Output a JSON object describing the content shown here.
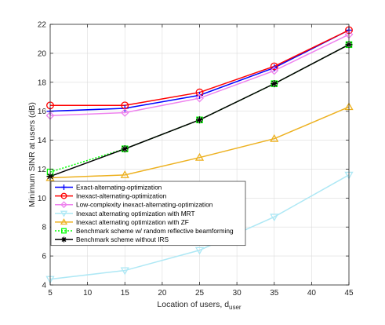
{
  "chart_data": {
    "type": "line",
    "title": "",
    "xlabel": "Location of users, d",
    "xlabel_sub": "user",
    "ylabel": "Minimum SINR at users (dB)",
    "xlim": [
      5,
      45
    ],
    "ylim": [
      4,
      22
    ],
    "xticks": [
      5,
      10,
      15,
      20,
      25,
      30,
      35,
      40,
      45
    ],
    "yticks": [
      4,
      6,
      8,
      10,
      12,
      14,
      16,
      18,
      20,
      22
    ],
    "grid": true,
    "legend_position": "lower-left",
    "x": [
      5,
      15,
      25,
      35,
      45
    ],
    "series": [
      {
        "name": "Exact-alternating-optimization",
        "color": "#0000ff",
        "marker": "plus",
        "dash": "solid",
        "values": [
          16.0,
          16.2,
          17.1,
          19.0,
          21.6
        ]
      },
      {
        "name": "Inexact-alternating-optimization",
        "color": "#ff0000",
        "marker": "circle",
        "dash": "solid",
        "values": [
          16.4,
          16.4,
          17.3,
          19.1,
          21.6
        ]
      },
      {
        "name": "Low-complexity inexact-alternating-optimization",
        "color": "#ee82ee",
        "marker": "diamond",
        "dash": "solid",
        "values": [
          15.7,
          15.9,
          16.9,
          18.8,
          21.3
        ]
      },
      {
        "name": "Inexact alternating optimization with MRT",
        "color": "#aee8f5",
        "marker": "triangle-down",
        "dash": "solid",
        "values": [
          4.4,
          5.0,
          6.4,
          8.7,
          11.6
        ]
      },
      {
        "name": "Inexact alternating optimization with ZF",
        "color": "#edb120",
        "marker": "triangle-up",
        "dash": "solid",
        "values": [
          11.4,
          11.6,
          12.8,
          14.1,
          16.3
        ]
      },
      {
        "name": "Benchmark scheme w/ random reflective beamforming",
        "color": "#00ff00",
        "marker": "square",
        "dash": "dotted",
        "values": [
          11.8,
          13.4,
          15.4,
          17.9,
          20.6
        ]
      },
      {
        "name": "Benchmark scheme without IRS",
        "color": "#000000",
        "marker": "asterisk",
        "dash": "solid",
        "values": [
          11.5,
          13.4,
          15.4,
          17.9,
          20.6
        ]
      }
    ]
  }
}
